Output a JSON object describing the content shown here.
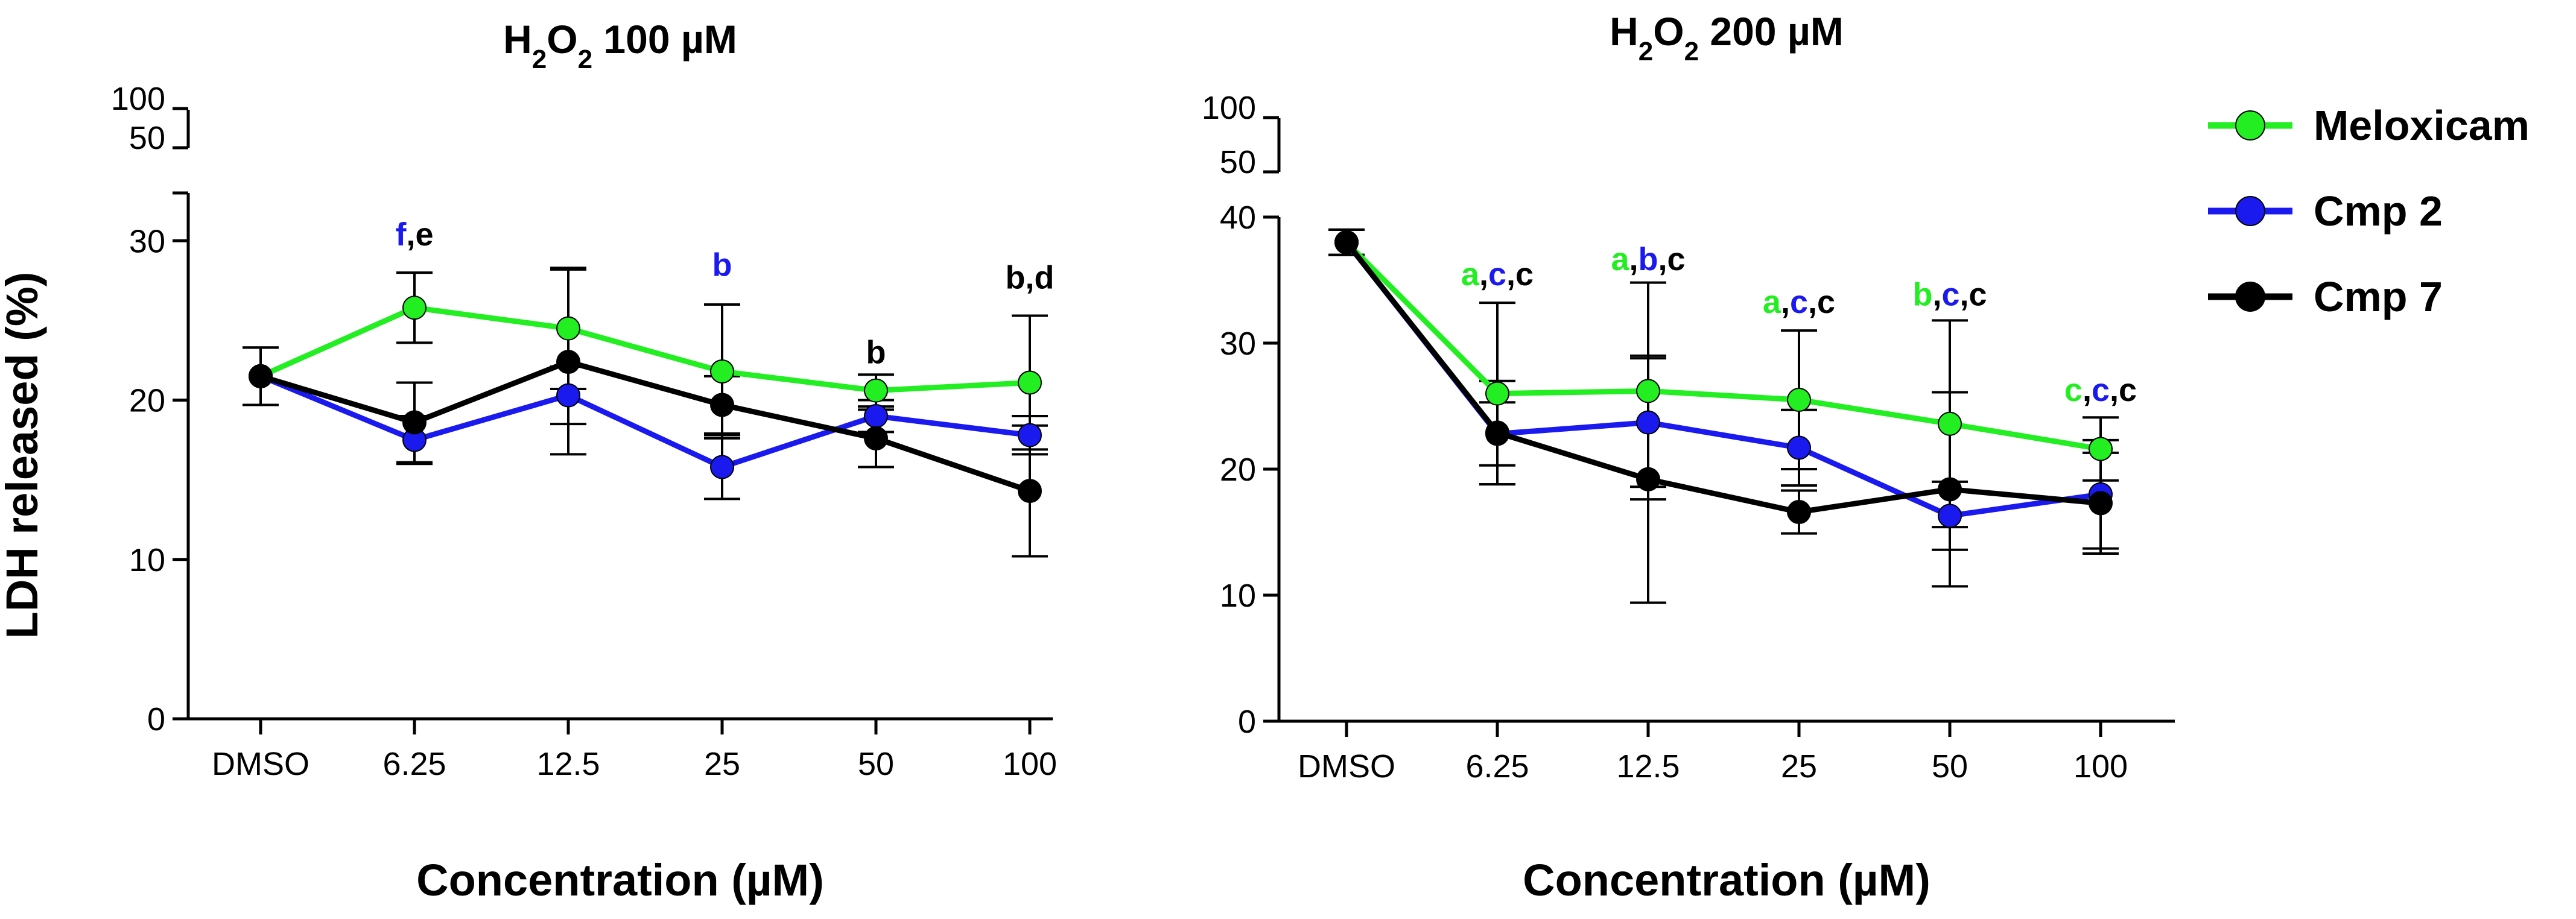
{
  "chart_data": [
    {
      "type": "line",
      "title": {
        "pre": "H",
        "s1": "2",
        "mid": "O",
        "s2": "2",
        "post": " 100 µM"
      },
      "xlabel": "Concentration (µM)",
      "ylabel": "LDH released (%)",
      "categories": [
        "DMSO",
        "6.25",
        "12.5",
        "25",
        "50",
        "100"
      ],
      "ylim": [
        0,
        33
      ],
      "yticks": [
        0,
        10,
        20,
        30
      ],
      "ybreak_ticks": [
        50,
        100
      ],
      "series": [
        {
          "name": "Meloxicam",
          "color": "#22ee22",
          "values": [
            21.5,
            25.8,
            24.5,
            21.8,
            20.6,
            21.1
          ],
          "errors": [
            1.8,
            2.2,
            3.8,
            4.2,
            1.0,
            4.2
          ]
        },
        {
          "name": "Cmp 2",
          "color": "#1a1aee",
          "values": [
            21.5,
            17.5,
            20.3,
            15.8,
            19.0,
            17.8
          ],
          "errors": [
            1.8,
            1.5,
            1.8,
            2.0,
            1.0,
            1.2
          ]
        },
        {
          "name": "Cmp 7",
          "color": "#000000",
          "values": [
            21.5,
            18.6,
            22.4,
            19.7,
            17.6,
            14.3
          ],
          "errors": [
            1.8,
            2.5,
            5.8,
            1.8,
            1.8,
            4.1
          ]
        }
      ],
      "annotations": [
        {
          "index": 1,
          "y": 29.7,
          "parts": [
            {
              "text": "f",
              "color": "#1a1aee"
            },
            {
              "text": ",e",
              "color": "#000000"
            }
          ]
        },
        {
          "index": 3,
          "y": 27.8,
          "parts": [
            {
              "text": "b",
              "color": "#1a1aee"
            }
          ]
        },
        {
          "index": 4,
          "y": 22.3,
          "parts": [
            {
              "text": "b",
              "color": "#000000"
            }
          ]
        },
        {
          "index": 5,
          "y": 27.0,
          "parts": [
            {
              "text": "b,d",
              "color": "#000000"
            }
          ]
        }
      ]
    },
    {
      "type": "line",
      "title": {
        "pre": "H",
        "s1": "2",
        "mid": "O",
        "s2": "2",
        "post": " 200 µM"
      },
      "xlabel": "Concentration (µM)",
      "ylabel": "",
      "categories": [
        "DMSO",
        "6.25",
        "12.5",
        "25",
        "50",
        "100"
      ],
      "ylim": [
        0,
        40
      ],
      "yticks": [
        0,
        10,
        20,
        30,
        40
      ],
      "ybreak_ticks": [
        50,
        100
      ],
      "series": [
        {
          "name": "Meloxicam",
          "color": "#22ee22",
          "values": [
            38.0,
            26.0,
            26.2,
            25.5,
            23.6,
            21.6
          ],
          "errors": [
            1.0,
            7.2,
            8.6,
            5.5,
            8.2,
            2.5
          ]
        },
        {
          "name": "Cmp 2",
          "color": "#1a1aee",
          "values": [
            38.0,
            22.8,
            23.7,
            21.7,
            16.3,
            18.0
          ],
          "errors": [
            1.0,
            2.5,
            5.1,
            3.0,
            2.7,
            4.3
          ]
        },
        {
          "name": "Cmp 7",
          "color": "#000000",
          "values": [
            38.0,
            22.9,
            19.2,
            16.6,
            18.4,
            17.3
          ],
          "errors": [
            1.0,
            4.1,
            9.8,
            1.7,
            7.7,
            4.0
          ]
        }
      ],
      "annotations": [
        {
          "index": 1,
          "y": 34.6,
          "parts": [
            {
              "text": "a",
              "color": "#22ee22"
            },
            {
              "text": ",",
              "color": "#000000"
            },
            {
              "text": "c",
              "color": "#1a1aee"
            },
            {
              "text": ",c",
              "color": "#000000"
            }
          ]
        },
        {
          "index": 2,
          "y": 35.8,
          "parts": [
            {
              "text": "a",
              "color": "#22ee22"
            },
            {
              "text": ",",
              "color": "#000000"
            },
            {
              "text": "b",
              "color": "#1a1aee"
            },
            {
              "text": ",c",
              "color": "#000000"
            }
          ]
        },
        {
          "index": 3,
          "y": 32.4,
          "parts": [
            {
              "text": "a",
              "color": "#22ee22"
            },
            {
              "text": ",",
              "color": "#000000"
            },
            {
              "text": "c",
              "color": "#1a1aee"
            },
            {
              "text": ",c",
              "color": "#000000"
            }
          ]
        },
        {
          "index": 4,
          "y": 33.0,
          "parts": [
            {
              "text": "b",
              "color": "#22ee22"
            },
            {
              "text": ",",
              "color": "#000000"
            },
            {
              "text": "c",
              "color": "#1a1aee"
            },
            {
              "text": ",c",
              "color": "#000000"
            }
          ]
        },
        {
          "index": 5,
          "y": 25.4,
          "parts": [
            {
              "text": "c",
              "color": "#22ee22"
            },
            {
              "text": ",",
              "color": "#000000"
            },
            {
              "text": "c",
              "color": "#1a1aee"
            },
            {
              "text": ",c",
              "color": "#000000"
            }
          ]
        }
      ]
    }
  ],
  "legend": [
    {
      "name": "Meloxicam",
      "color": "#22ee22"
    },
    {
      "name": "Cmp 2",
      "color": "#1a1aee"
    },
    {
      "name": "Cmp 7",
      "color": "#000000"
    }
  ]
}
